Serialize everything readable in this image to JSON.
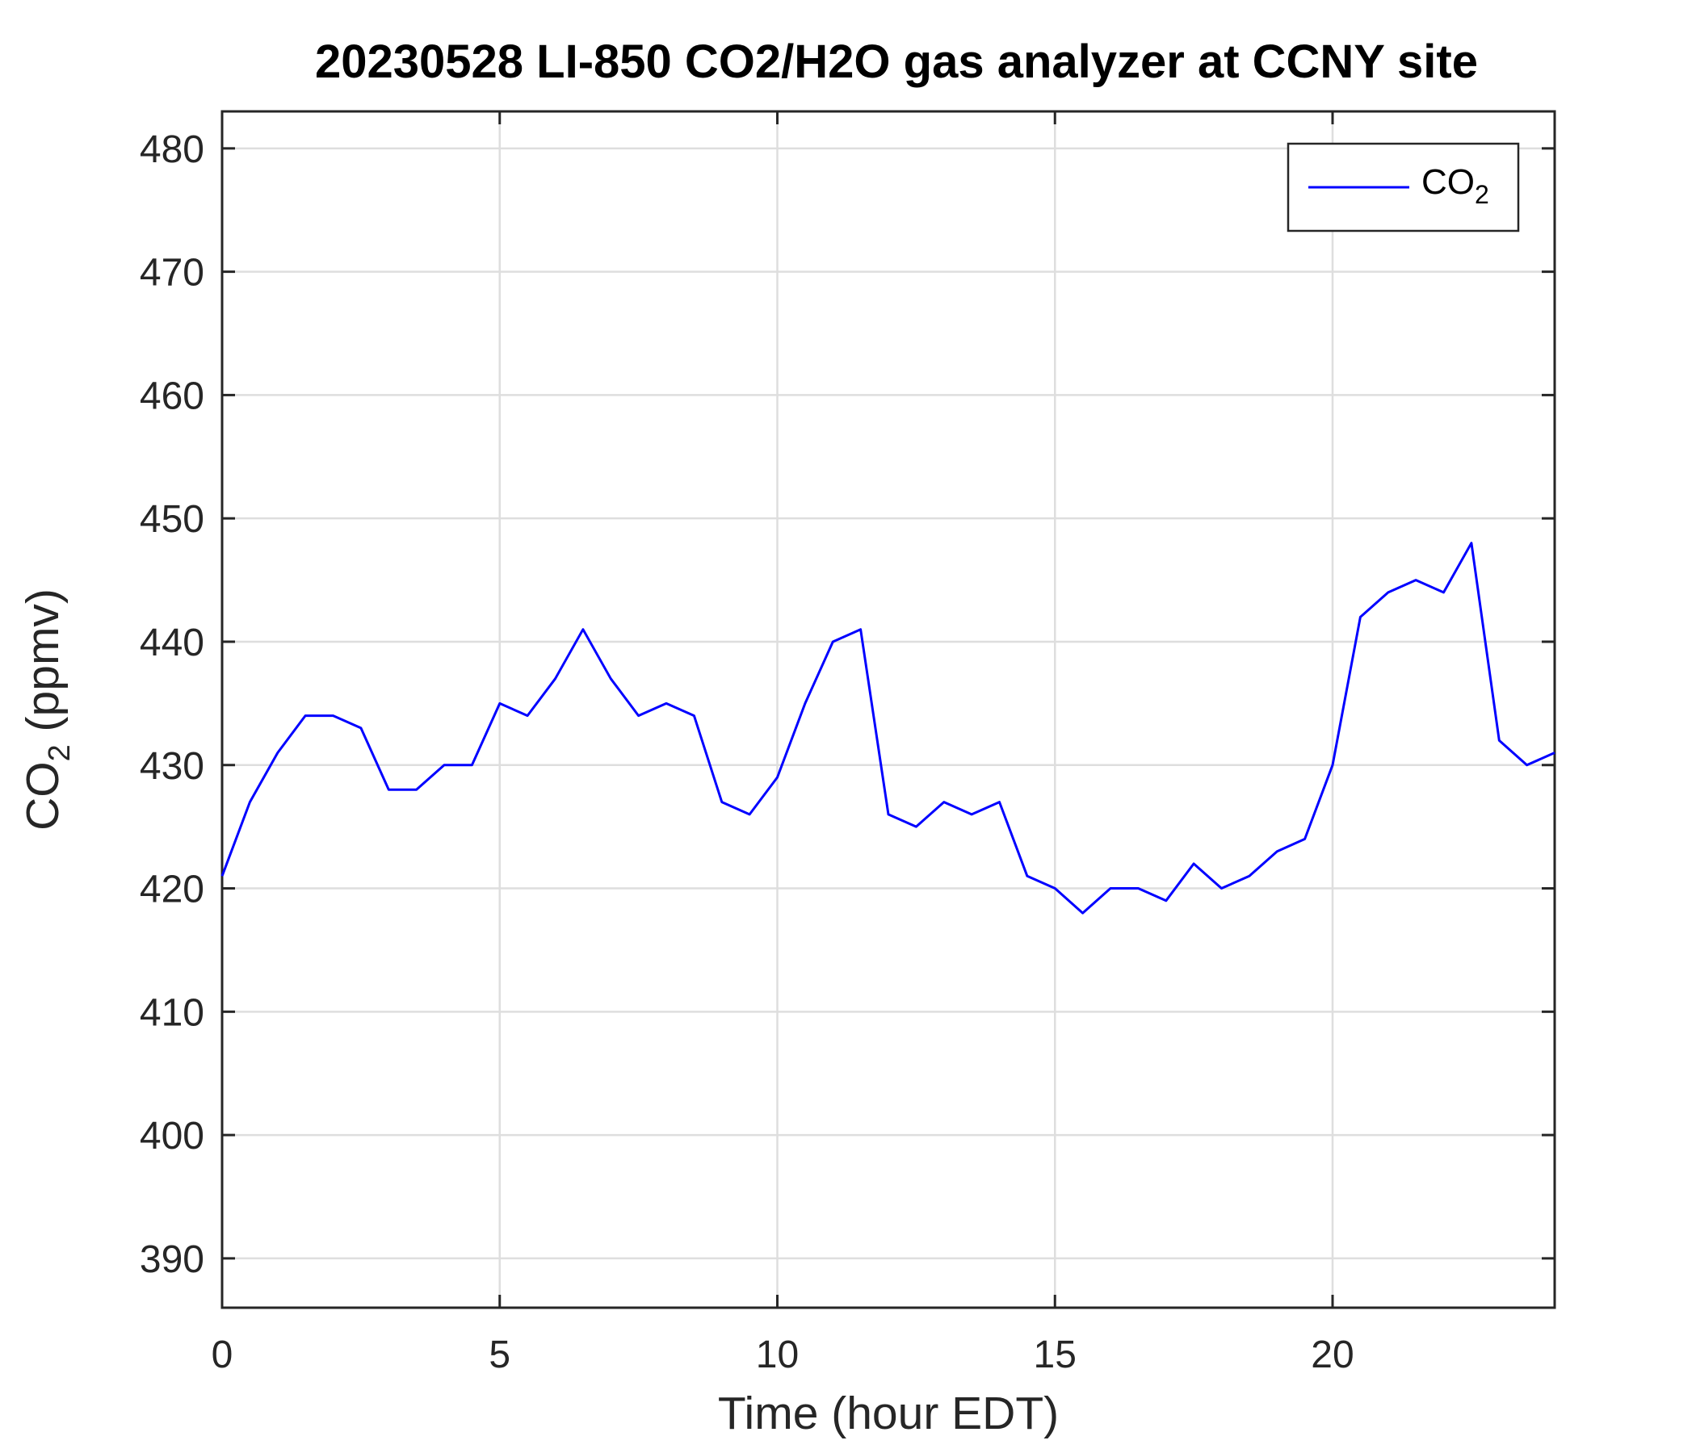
{
  "chart_data": {
    "type": "line",
    "title": "20230528 LI-850 CO2/H2O gas analyzer at CCNY site",
    "xlabel": "Time (hour EDT)",
    "ylabel": "CO",
    "ylabel_sub": "2",
    "ylabel_suffix": " (ppmv)",
    "xlim": [
      0,
      24
    ],
    "ylim": [
      386,
      483
    ],
    "x_ticks": [
      0,
      5,
      10,
      15,
      20
    ],
    "y_ticks": [
      390,
      400,
      410,
      420,
      430,
      440,
      450,
      460,
      470,
      480
    ],
    "grid": true,
    "legend_position": "top-right",
    "series": [
      {
        "name": "CO",
        "name_sub": "2",
        "color": "#0000ff",
        "x": [
          0,
          0.5,
          1.0,
          1.5,
          2.0,
          2.5,
          3.0,
          3.5,
          4.0,
          4.5,
          5.0,
          5.5,
          6.0,
          6.5,
          7.0,
          7.5,
          8.0,
          8.5,
          9.0,
          9.5,
          10.0,
          10.5,
          11.0,
          11.5,
          12.0,
          12.5,
          13.0,
          13.5,
          14.0,
          14.5,
          15.0,
          15.5,
          16.0,
          16.5,
          17.0,
          17.5,
          18.0,
          18.5,
          19.0,
          19.5,
          20.0,
          20.5,
          21.0,
          21.5,
          22.0,
          22.5,
          23.0,
          23.5,
          24.0
        ],
        "y": [
          421,
          427,
          431,
          434,
          434,
          433,
          428,
          428,
          430,
          430,
          435,
          434,
          437,
          441,
          437,
          434,
          435,
          434,
          427,
          426,
          429,
          435,
          440,
          441,
          426,
          425,
          427,
          426,
          427,
          421,
          420,
          418,
          420,
          420,
          419,
          422,
          420,
          421,
          423,
          424,
          430,
          442,
          444,
          445,
          444,
          448,
          432,
          430,
          431
        ]
      }
    ]
  }
}
